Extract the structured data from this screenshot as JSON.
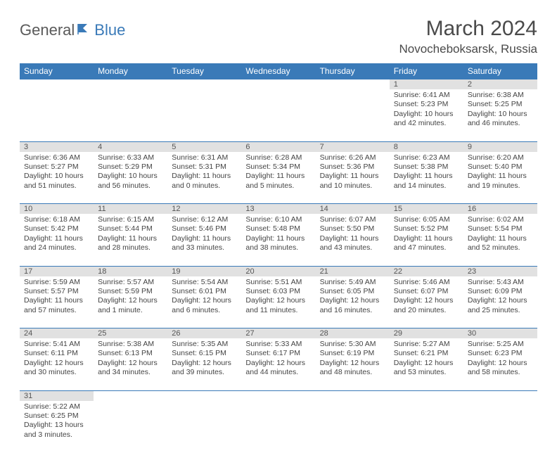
{
  "logo": {
    "text1": "General",
    "text2": "Blue"
  },
  "title": "March 2024",
  "location": "Novocheboksarsk, Russia",
  "colors": {
    "header_bg": "#3a7ab8",
    "header_text": "#ffffff",
    "daynum_bg": "#e1e1e1",
    "border": "#3a7ab8",
    "text": "#444444",
    "logo_gray": "#5a5a5a",
    "logo_blue": "#3a7ab8"
  },
  "day_headers": [
    "Sunday",
    "Monday",
    "Tuesday",
    "Wednesday",
    "Thursday",
    "Friday",
    "Saturday"
  ],
  "weeks": [
    [
      null,
      null,
      null,
      null,
      null,
      {
        "n": "1",
        "sr": "Sunrise: 6:41 AM",
        "ss": "Sunset: 5:23 PM",
        "dl": "Daylight: 10 hours and 42 minutes."
      },
      {
        "n": "2",
        "sr": "Sunrise: 6:38 AM",
        "ss": "Sunset: 5:25 PM",
        "dl": "Daylight: 10 hours and 46 minutes."
      }
    ],
    [
      {
        "n": "3",
        "sr": "Sunrise: 6:36 AM",
        "ss": "Sunset: 5:27 PM",
        "dl": "Daylight: 10 hours and 51 minutes."
      },
      {
        "n": "4",
        "sr": "Sunrise: 6:33 AM",
        "ss": "Sunset: 5:29 PM",
        "dl": "Daylight: 10 hours and 56 minutes."
      },
      {
        "n": "5",
        "sr": "Sunrise: 6:31 AM",
        "ss": "Sunset: 5:31 PM",
        "dl": "Daylight: 11 hours and 0 minutes."
      },
      {
        "n": "6",
        "sr": "Sunrise: 6:28 AM",
        "ss": "Sunset: 5:34 PM",
        "dl": "Daylight: 11 hours and 5 minutes."
      },
      {
        "n": "7",
        "sr": "Sunrise: 6:26 AM",
        "ss": "Sunset: 5:36 PM",
        "dl": "Daylight: 11 hours and 10 minutes."
      },
      {
        "n": "8",
        "sr": "Sunrise: 6:23 AM",
        "ss": "Sunset: 5:38 PM",
        "dl": "Daylight: 11 hours and 14 minutes."
      },
      {
        "n": "9",
        "sr": "Sunrise: 6:20 AM",
        "ss": "Sunset: 5:40 PM",
        "dl": "Daylight: 11 hours and 19 minutes."
      }
    ],
    [
      {
        "n": "10",
        "sr": "Sunrise: 6:18 AM",
        "ss": "Sunset: 5:42 PM",
        "dl": "Daylight: 11 hours and 24 minutes."
      },
      {
        "n": "11",
        "sr": "Sunrise: 6:15 AM",
        "ss": "Sunset: 5:44 PM",
        "dl": "Daylight: 11 hours and 28 minutes."
      },
      {
        "n": "12",
        "sr": "Sunrise: 6:12 AM",
        "ss": "Sunset: 5:46 PM",
        "dl": "Daylight: 11 hours and 33 minutes."
      },
      {
        "n": "13",
        "sr": "Sunrise: 6:10 AM",
        "ss": "Sunset: 5:48 PM",
        "dl": "Daylight: 11 hours and 38 minutes."
      },
      {
        "n": "14",
        "sr": "Sunrise: 6:07 AM",
        "ss": "Sunset: 5:50 PM",
        "dl": "Daylight: 11 hours and 43 minutes."
      },
      {
        "n": "15",
        "sr": "Sunrise: 6:05 AM",
        "ss": "Sunset: 5:52 PM",
        "dl": "Daylight: 11 hours and 47 minutes."
      },
      {
        "n": "16",
        "sr": "Sunrise: 6:02 AM",
        "ss": "Sunset: 5:54 PM",
        "dl": "Daylight: 11 hours and 52 minutes."
      }
    ],
    [
      {
        "n": "17",
        "sr": "Sunrise: 5:59 AM",
        "ss": "Sunset: 5:57 PM",
        "dl": "Daylight: 11 hours and 57 minutes."
      },
      {
        "n": "18",
        "sr": "Sunrise: 5:57 AM",
        "ss": "Sunset: 5:59 PM",
        "dl": "Daylight: 12 hours and 1 minute."
      },
      {
        "n": "19",
        "sr": "Sunrise: 5:54 AM",
        "ss": "Sunset: 6:01 PM",
        "dl": "Daylight: 12 hours and 6 minutes."
      },
      {
        "n": "20",
        "sr": "Sunrise: 5:51 AM",
        "ss": "Sunset: 6:03 PM",
        "dl": "Daylight: 12 hours and 11 minutes."
      },
      {
        "n": "21",
        "sr": "Sunrise: 5:49 AM",
        "ss": "Sunset: 6:05 PM",
        "dl": "Daylight: 12 hours and 16 minutes."
      },
      {
        "n": "22",
        "sr": "Sunrise: 5:46 AM",
        "ss": "Sunset: 6:07 PM",
        "dl": "Daylight: 12 hours and 20 minutes."
      },
      {
        "n": "23",
        "sr": "Sunrise: 5:43 AM",
        "ss": "Sunset: 6:09 PM",
        "dl": "Daylight: 12 hours and 25 minutes."
      }
    ],
    [
      {
        "n": "24",
        "sr": "Sunrise: 5:41 AM",
        "ss": "Sunset: 6:11 PM",
        "dl": "Daylight: 12 hours and 30 minutes."
      },
      {
        "n": "25",
        "sr": "Sunrise: 5:38 AM",
        "ss": "Sunset: 6:13 PM",
        "dl": "Daylight: 12 hours and 34 minutes."
      },
      {
        "n": "26",
        "sr": "Sunrise: 5:35 AM",
        "ss": "Sunset: 6:15 PM",
        "dl": "Daylight: 12 hours and 39 minutes."
      },
      {
        "n": "27",
        "sr": "Sunrise: 5:33 AM",
        "ss": "Sunset: 6:17 PM",
        "dl": "Daylight: 12 hours and 44 minutes."
      },
      {
        "n": "28",
        "sr": "Sunrise: 5:30 AM",
        "ss": "Sunset: 6:19 PM",
        "dl": "Daylight: 12 hours and 48 minutes."
      },
      {
        "n": "29",
        "sr": "Sunrise: 5:27 AM",
        "ss": "Sunset: 6:21 PM",
        "dl": "Daylight: 12 hours and 53 minutes."
      },
      {
        "n": "30",
        "sr": "Sunrise: 5:25 AM",
        "ss": "Sunset: 6:23 PM",
        "dl": "Daylight: 12 hours and 58 minutes."
      }
    ],
    [
      {
        "n": "31",
        "sr": "Sunrise: 5:22 AM",
        "ss": "Sunset: 6:25 PM",
        "dl": "Daylight: 13 hours and 3 minutes."
      },
      null,
      null,
      null,
      null,
      null,
      null
    ]
  ]
}
